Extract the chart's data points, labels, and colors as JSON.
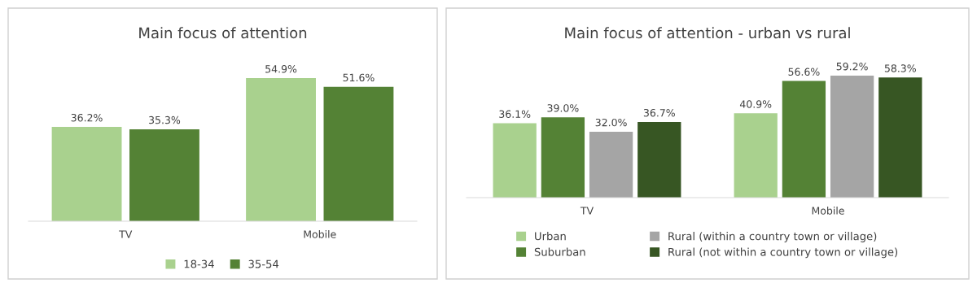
{
  "chart_data": [
    {
      "type": "bar",
      "title": "Main focus of attention",
      "categories": [
        "TV",
        "Mobile"
      ],
      "series": [
        {
          "name": "18-34",
          "color": "#a9d18e",
          "values": [
            36.2,
            54.9
          ],
          "value_labels": [
            "36.2%",
            "54.9%"
          ]
        },
        {
          "name": "35-54",
          "color": "#548235",
          "values": [
            35.3,
            51.6
          ],
          "value_labels": [
            "35.3%",
            "51.6%"
          ]
        }
      ],
      "legend": "bottom",
      "grid": false
    },
    {
      "type": "bar",
      "title": "Main focus of attention - urban vs rural",
      "categories": [
        "TV",
        "Mobile"
      ],
      "series": [
        {
          "name": "Urban",
          "color": "#a9d18e",
          "values": [
            36.1,
            40.9
          ],
          "value_labels": [
            "36.1%",
            "40.9%"
          ]
        },
        {
          "name": "Suburban",
          "color": "#548235",
          "values": [
            39.0,
            56.6
          ],
          "value_labels": [
            "39.0%",
            "56.6%"
          ]
        },
        {
          "name": "Rural (within a country town or village)",
          "color": "#a5a5a5",
          "values": [
            32.0,
            59.2
          ],
          "value_labels": [
            "32.0%",
            "59.2%"
          ]
        },
        {
          "name": "Rural (not within a country town or village)",
          "color": "#375623",
          "values": [
            36.7,
            58.3
          ],
          "value_labels": [
            "36.7%",
            "58.3%"
          ]
        }
      ],
      "legend": "bottom",
      "grid": false
    }
  ]
}
